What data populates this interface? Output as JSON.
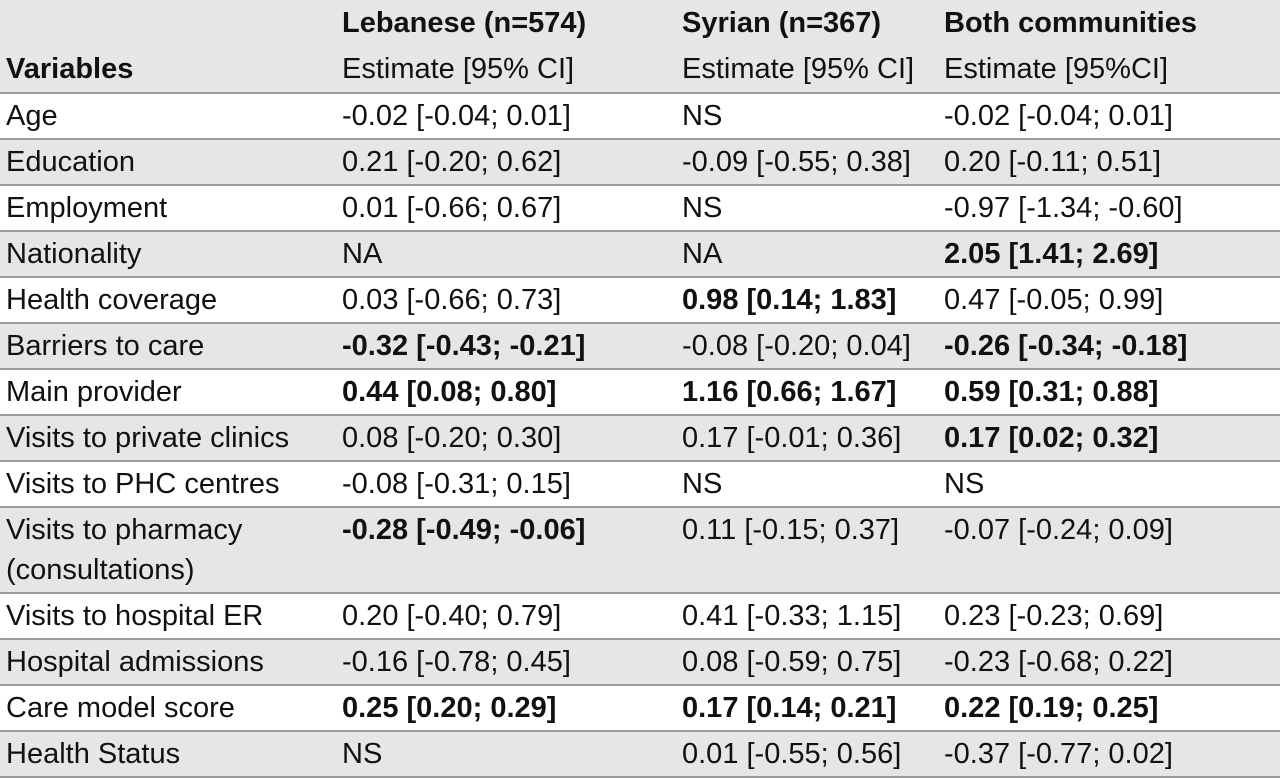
{
  "header": {
    "variables_label": "Variables",
    "groups": [
      {
        "title": "Lebanese (n=574)",
        "subtitle": "Estimate [95% CI]"
      },
      {
        "title": "Syrian (n=367)",
        "subtitle": "Estimate [95% CI]"
      },
      {
        "title": "Both communities",
        "subtitle": "Estimate [95%CI]"
      }
    ]
  },
  "rows": [
    {
      "variable": "Age",
      "lebanese": "-0.02 [-0.04; 0.01]",
      "syrian": "NS",
      "both": "-0.02 [-0.04; 0.01]"
    },
    {
      "variable": "Education",
      "lebanese": "0.21 [-0.20; 0.62]",
      "syrian": "-0.09 [-0.55; 0.38]",
      "both": "0.20 [-0.11; 0.51]"
    },
    {
      "variable": "Employment",
      "lebanese": "0.01 [-0.66; 0.67]",
      "syrian": "NS",
      "both": "-0.97 [-1.34; -0.60]"
    },
    {
      "variable": "Nationality",
      "lebanese": "NA",
      "syrian": "NA",
      "both": "2.05 [1.41; 2.69]"
    },
    {
      "variable": "Health coverage",
      "lebanese": "0.03 [-0.66; 0.73]",
      "syrian": "0.98 [0.14; 1.83]",
      "both": "0.47 [-0.05; 0.99]"
    },
    {
      "variable": "Barriers to care",
      "lebanese": "-0.32 [-0.43; -0.21]",
      "syrian": "-0.08 [-0.20; 0.04]",
      "both": "-0.26 [-0.34; -0.18]"
    },
    {
      "variable": "Main provider",
      "lebanese": "0.44 [0.08; 0.80]",
      "syrian": "1.16 [0.66; 1.67]",
      "both": "0.59 [0.31; 0.88]"
    },
    {
      "variable": "Visits to private clinics",
      "lebanese": "0.08 [-0.20; 0.30]",
      "syrian": "0.17 [-0.01; 0.36]",
      "both": "0.17 [0.02; 0.32]"
    },
    {
      "variable": "Visits to PHC centres",
      "lebanese": "-0.08 [-0.31; 0.15]",
      "syrian": "NS",
      "both": "NS"
    },
    {
      "variable": "Visits to pharmacy (consultations)",
      "lebanese": "-0.28 [-0.49; -0.06]",
      "syrian": "0.11 [-0.15; 0.37]",
      "both": "-0.07 [-0.24; 0.09]"
    },
    {
      "variable": "Visits to hospital ER",
      "lebanese": "0.20 [-0.40; 0.79]",
      "syrian": "0.41 [-0.33; 1.15]",
      "both": "0.23 [-0.23; 0.69]"
    },
    {
      "variable": "Hospital admissions",
      "lebanese": "-0.16 [-0.78; 0.45]",
      "syrian": "0.08 [-0.59; 0.75]",
      "both": "-0.23 [-0.68; 0.22]"
    },
    {
      "variable": "Care model score",
      "lebanese": "0.25 [0.20; 0.29]",
      "syrian": "0.17 [0.14; 0.21]",
      "both": "0.22 [0.19; 0.25]"
    },
    {
      "variable": "Health Status",
      "lebanese": "NS",
      "syrian": "0.01 [-0.55; 0.56]",
      "both": "-0.37 [-0.77; 0.02]"
    }
  ],
  "bold_cells": [
    "3.both",
    "4.syrian",
    "5.lebanese",
    "5.both",
    "6.lebanese",
    "6.syrian",
    "6.both",
    "7.both",
    "9.lebanese",
    "12.lebanese",
    "12.syrian",
    "12.both"
  ],
  "colors": {
    "row_shade": "#e6e6e6",
    "rule": "#9a9a9a",
    "text": "#111111"
  }
}
